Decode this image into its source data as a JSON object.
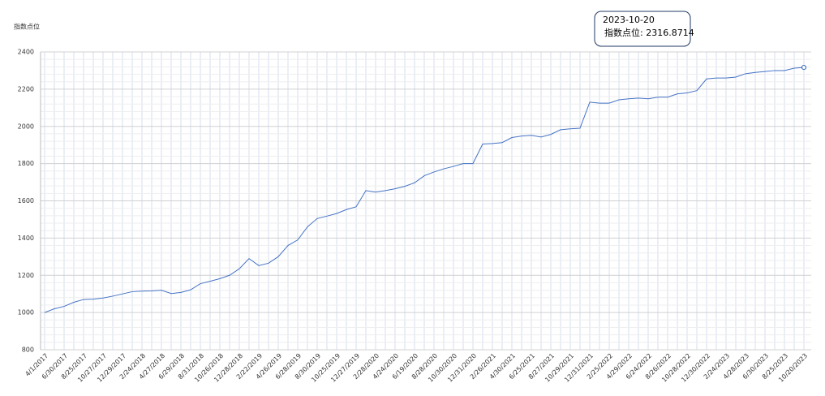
{
  "chart_data": {
    "type": "line",
    "y_axis_label": "指数点位",
    "categories": [
      "4/1/2017",
      null,
      "6/30/2017",
      null,
      "8/25/2017",
      null,
      "10/27/2017",
      null,
      "12/29/2017",
      null,
      "2/24/2018",
      null,
      "4/27/2018",
      null,
      "6/29/2018",
      null,
      "8/31/2018",
      null,
      "10/26/2018",
      null,
      "12/28/2018",
      null,
      "2/22/2019",
      null,
      "4/26/2019",
      null,
      "6/28/2019",
      null,
      "8/30/2019",
      null,
      "10/25/2019",
      null,
      "12/27/2019",
      null,
      "2/28/2020",
      null,
      "4/24/2020",
      null,
      "6/19/2020",
      null,
      "8/28/2020",
      null,
      "10/30/2020",
      null,
      "12/31/2020",
      null,
      "2/26/2021",
      null,
      "4/30/2021",
      null,
      "6/25/2021",
      null,
      "8/27/2021",
      null,
      "10/29/2021",
      null,
      "12/31/2021",
      null,
      "2/25/2022",
      null,
      "4/29/2022",
      null,
      "6/24/2022",
      null,
      "8/26/2022",
      null,
      "10/28/2022",
      null,
      "12/30/2022",
      null,
      "2/24/2023",
      null,
      "4/28/2023",
      null,
      "6/30/2023",
      null,
      "8/25/2023",
      null,
      "10/20/2023"
    ],
    "series": [
      {
        "name": "指数点位",
        "color": "#4472c4",
        "values": [
          1000,
          1020,
          1033,
          1055,
          1070,
          1072,
          1078,
          1088,
          1100,
          1112,
          1115,
          1116,
          1120,
          1102,
          1108,
          1122,
          1155,
          1168,
          1182,
          1200,
          1235,
          1290,
          1252,
          1265,
          1300,
          1360,
          1390,
          1460,
          1505,
          1518,
          1532,
          1553,
          1568,
          1655,
          1647,
          1655,
          1665,
          1678,
          1697,
          1735,
          1755,
          1772,
          1785,
          1800,
          1800,
          1905,
          1908,
          1913,
          1940,
          1948,
          1952,
          1943,
          1957,
          1982,
          1987,
          1990,
          2130,
          2125,
          2125,
          2143,
          2148,
          2152,
          2148,
          2157,
          2157,
          2175,
          2180,
          2192,
          2255,
          2260,
          2260,
          2265,
          2283,
          2290,
          2295,
          2300,
          2300,
          2313,
          2316.8714
        ]
      }
    ],
    "ylim": [
      800,
      2400
    ],
    "yticks": [
      800,
      1000,
      1200,
      1400,
      1600,
      1800,
      2000,
      2200,
      2400
    ],
    "grid": true,
    "tooltip": {
      "title": "2023-10-20",
      "label": "指数点位: 2316.8714"
    }
  }
}
